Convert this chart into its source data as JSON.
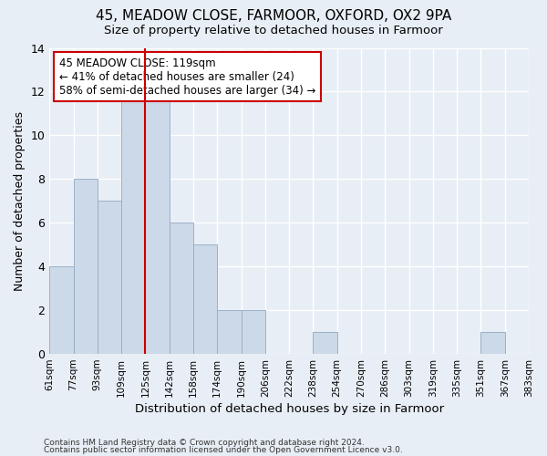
{
  "title": "45, MEADOW CLOSE, FARMOOR, OXFORD, OX2 9PA",
  "subtitle": "Size of property relative to detached houses in Farmoor",
  "xlabel": "Distribution of detached houses by size in Farmoor",
  "ylabel": "Number of detached properties",
  "bin_labels": [
    "61sqm",
    "77sqm",
    "93sqm",
    "109sqm",
    "125sqm",
    "142sqm",
    "158sqm",
    "174sqm",
    "190sqm",
    "206sqm",
    "222sqm",
    "238sqm",
    "254sqm",
    "270sqm",
    "286sqm",
    "303sqm",
    "319sqm",
    "335sqm",
    "351sqm",
    "367sqm",
    "383sqm"
  ],
  "bar_heights": [
    4,
    8,
    7,
    12,
    12,
    6,
    5,
    2,
    2,
    0,
    0,
    1,
    0,
    0,
    0,
    0,
    0,
    0,
    1,
    0
  ],
  "bar_color": "#ccd9e8",
  "bar_edge_color": "#9ab0c8",
  "red_line_x": 4,
  "annotation_text": "45 MEADOW CLOSE: 119sqm\n← 41% of detached houses are smaller (24)\n58% of semi-detached houses are larger (34) →",
  "annotation_box_color": "#ffffff",
  "annotation_box_edge_color": "#cc0000",
  "red_line_color": "#cc0000",
  "ylim": [
    0,
    14
  ],
  "yticks": [
    0,
    2,
    4,
    6,
    8,
    10,
    12,
    14
  ],
  "footer_line1": "Contains HM Land Registry data © Crown copyright and database right 2024.",
  "footer_line2": "Contains public sector information licensed under the Open Government Licence v3.0.",
  "bg_color": "#e8eef5",
  "grid_color": "#ffffff",
  "title_fontsize": 11,
  "subtitle_fontsize": 9.5
}
